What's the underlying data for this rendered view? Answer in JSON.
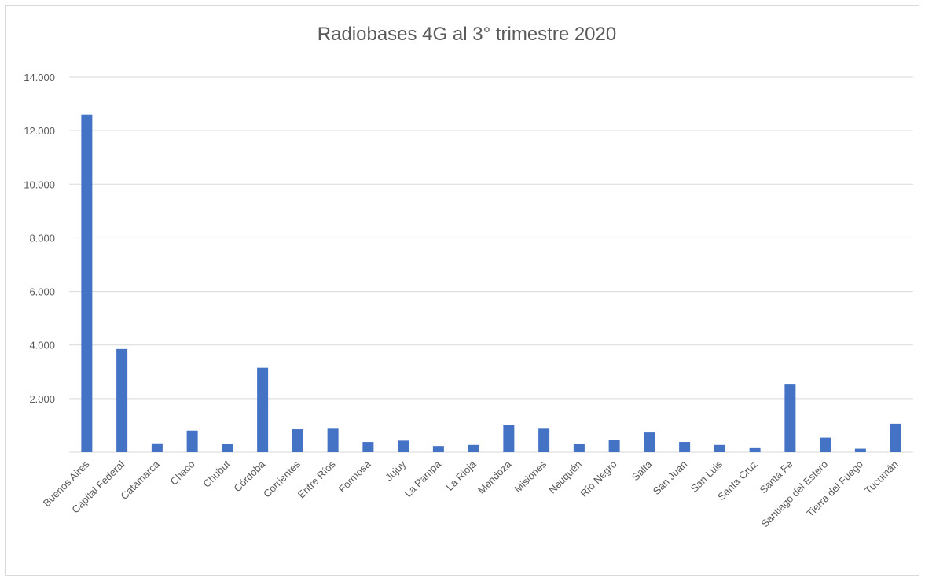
{
  "chart_data": {
    "type": "bar",
    "title": "Radiobases 4G al 3° trimestre 2020",
    "xlabel": "",
    "ylabel": "",
    "ylim": [
      0,
      14000
    ],
    "yticks": [
      0,
      2000,
      4000,
      6000,
      8000,
      10000,
      12000,
      14000
    ],
    "ytick_labels": [
      "",
      "2.000",
      "4.000",
      "6.000",
      "8.000",
      "10.000",
      "12.000",
      "14.000"
    ],
    "grid": true,
    "legend": "none",
    "categories": [
      "Buenos Aires",
      "Capital Federal",
      "Catamarca",
      "Chaco",
      "Chubut",
      "Córdoba",
      "Corrientes",
      "Entre Ríos",
      "Formosa",
      "Jujuy",
      "La Pampa",
      "La Rioja",
      "Mendoza",
      "Misiones",
      "Neuquén",
      "Río Negro",
      "Salta",
      "San Juan",
      "San Luis",
      "Santa Cruz",
      "Santa Fe",
      "Santiago del Estero",
      "Tierra del Fuego",
      "Tucumán"
    ],
    "series": [
      {
        "values": [
          12600,
          3850,
          330,
          800,
          320,
          3150,
          850,
          900,
          380,
          430,
          230,
          270,
          1000,
          900,
          320,
          440,
          760,
          380,
          270,
          180,
          2550,
          540,
          130,
          1060
        ]
      }
    ],
    "colors": {
      "bar": "#4472c4",
      "grid": "#d9d9d9",
      "text": "#595959"
    }
  }
}
